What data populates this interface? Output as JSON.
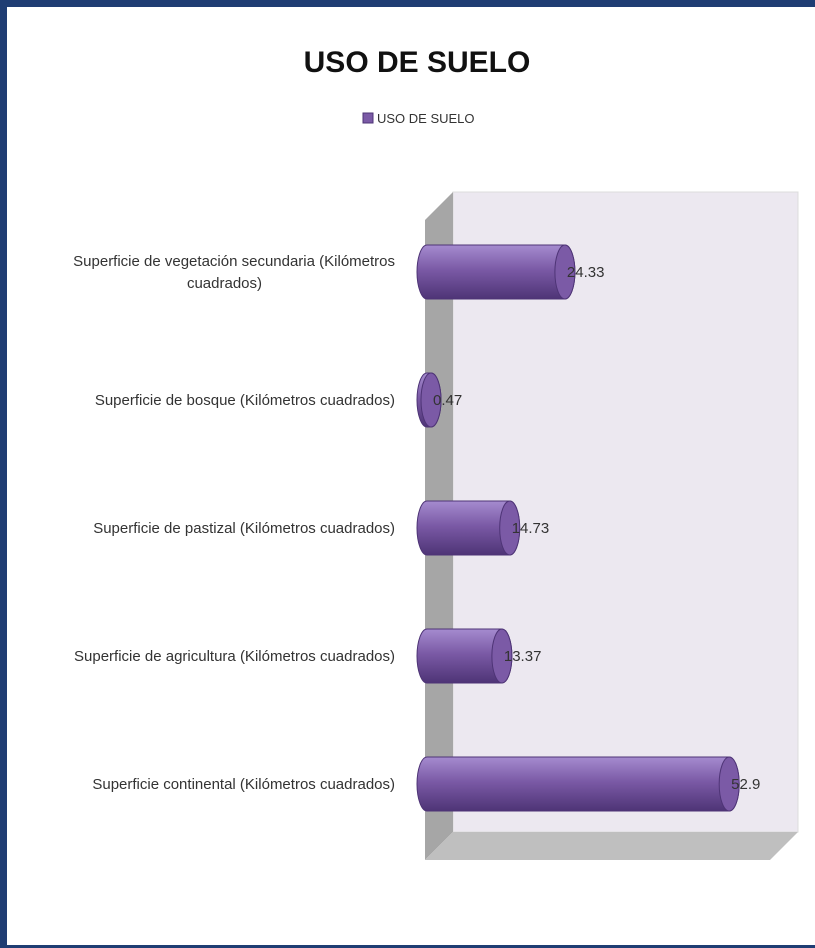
{
  "chart_data": {
    "type": "bar",
    "orientation": "horizontal",
    "title": "USO DE SUELO",
    "legend": [
      "USO DE SUELO"
    ],
    "legend_position": "top",
    "categories": [
      "Superficie continental (Kilómetros cuadrados)",
      "Superficie de agricultura (Kilómetros cuadrados)",
      "Superficie de pastizal (Kilómetros cuadrados)",
      "Superficie de bosque (Kilómetros cuadrados)",
      "Superficie de vegetación secundaria (Kilómetros cuadrados)"
    ],
    "series": [
      {
        "name": "USO DE SUELO",
        "values": [
          52.9,
          13.37,
          14.73,
          0.47,
          24.33
        ]
      }
    ],
    "data_labels": [
      "52.9",
      "13.37",
      "14.73",
      "0.47",
      "24.33"
    ],
    "xlim": [
      0,
      60
    ],
    "grid": false,
    "bar_color": "#7b5aa6",
    "bar_dark": "#4e3476",
    "bar_light": "#a58bcf",
    "wall_color": "#ece8f0",
    "side_wall_color": "#a6a6a6",
    "floor_color": "#bfbfbf"
  }
}
